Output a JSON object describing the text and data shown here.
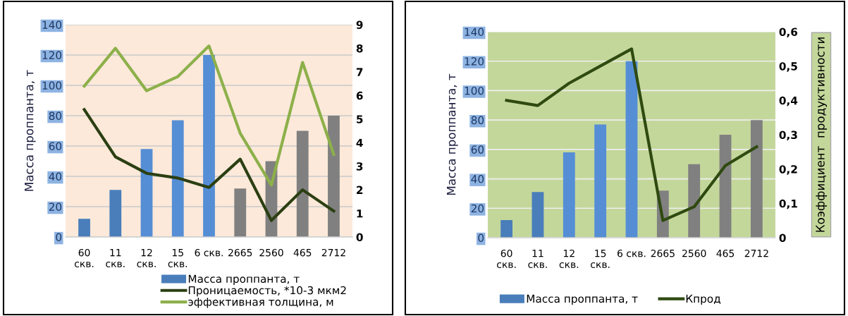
{
  "chart_data": [
    {
      "type": "bar",
      "categories": [
        "60\nскв.",
        "11\nскв.",
        "12\nскв.",
        "15\nскв.",
        "6 скв.",
        "2665",
        "2560",
        "465",
        "2712"
      ],
      "ylabel": "Масса проппанта, т",
      "ylim": [
        0,
        140
      ],
      "yticks": [
        0,
        20,
        40,
        60,
        80,
        100,
        120,
        140
      ],
      "y2lim": [
        0,
        9
      ],
      "y2ticks": [
        0,
        1,
        2,
        3,
        4,
        5,
        6,
        7,
        8,
        9
      ],
      "grid": "y",
      "legend": "bottom",
      "series": [
        {
          "name": "Масса проппанта, т",
          "color": "#4a7ebb",
          "colors": [
            "#4a7ebb",
            "#4a7ebb",
            "#558ed5",
            "#558ed5",
            "#558ed5",
            "#808080",
            "#808080",
            "#808080",
            "#808080"
          ],
          "values": [
            12,
            31,
            58,
            77,
            120,
            32,
            50,
            70,
            80
          ]
        },
        {
          "name": "Проницаемость, *10-3 мкм2",
          "type": "line",
          "axis": "y2",
          "color": "#2b3f12",
          "values": [
            5.4,
            3.4,
            2.7,
            2.5,
            2.1,
            3.3,
            0.7,
            2.0,
            1.1
          ]
        },
        {
          "name": "эффективная толщина, м",
          "type": "line",
          "axis": "y2",
          "color": "#8db04a",
          "values": [
            6.4,
            8.0,
            6.2,
            6.8,
            8.1,
            4.4,
            2.2,
            7.4,
            3.5
          ]
        }
      ]
    },
    {
      "type": "bar",
      "categories": [
        "60\nскв.",
        "11\nскв.",
        "12\nскв.",
        "15\nскв.",
        "6 скв.",
        "2665",
        "2560",
        "465",
        "2712"
      ],
      "ylabel": "Масса проппанта, т",
      "y2label": "Коэффициент  продуктивности",
      "ylim": [
        0,
        140
      ],
      "yticks": [
        0,
        20,
        40,
        60,
        80,
        100,
        120,
        140
      ],
      "y2lim": [
        0,
        0.6
      ],
      "y2ticks": [
        {
          "value": 0,
          "label": "0"
        },
        {
          "value": 0.1,
          "label": "0,1"
        },
        {
          "value": 0.2,
          "label": "0,2"
        },
        {
          "value": 0.3,
          "label": "0,3"
        },
        {
          "value": 0.4,
          "label": "0,4"
        },
        {
          "value": 0.5,
          "label": "0,5"
        },
        {
          "value": 0.6,
          "label": "0,6"
        }
      ],
      "grid": "y",
      "legend": "bottom",
      "series": [
        {
          "name": "Масса проппанта, т",
          "color": "#4a7ebb",
          "colors": [
            "#4a7ebb",
            "#4a7ebb",
            "#558ed5",
            "#558ed5",
            "#558ed5",
            "#808080",
            "#808080",
            "#808080",
            "#808080"
          ],
          "values": [
            12,
            31,
            58,
            77,
            120,
            32,
            50,
            70,
            80
          ]
        },
        {
          "name": "Кпрод",
          "type": "line",
          "axis": "y2",
          "color": "#2f4a10",
          "values": [
            0.4,
            0.385,
            0.45,
            0.5,
            0.55,
            0.05,
            0.09,
            0.21,
            0.265
          ]
        }
      ]
    }
  ]
}
